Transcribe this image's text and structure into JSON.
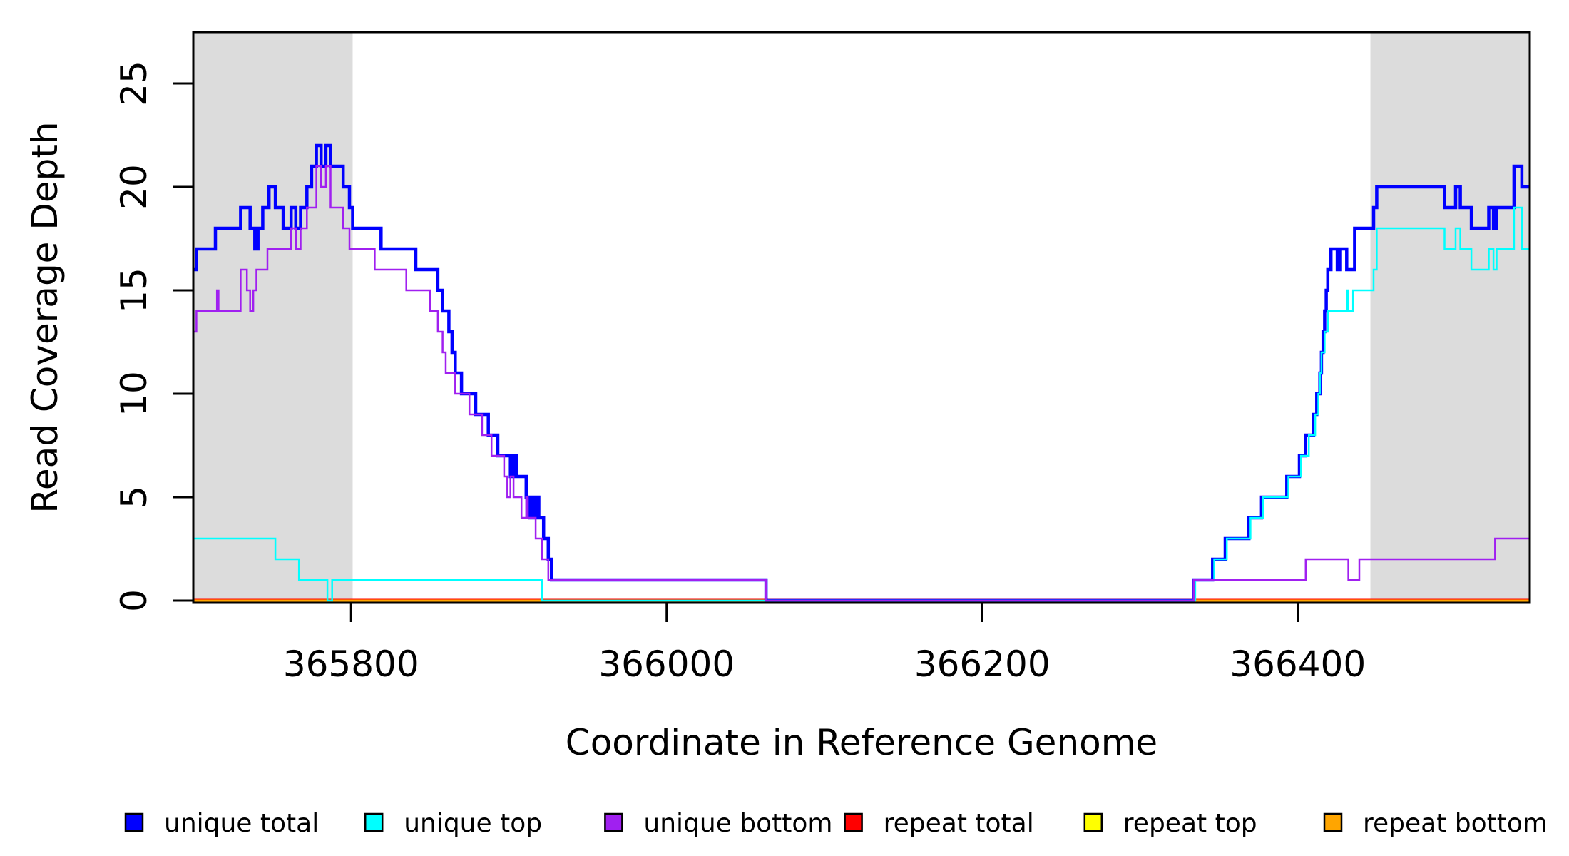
{
  "figure": {
    "background": "#ffffff",
    "plot_border_color": "#000000"
  },
  "chart_data": {
    "type": "line",
    "subtype": "step-coverage",
    "title": "",
    "xlabel": "Coordinate in Reference Genome",
    "ylabel": "Read Coverage Depth",
    "x_range": [
      365700,
      366547
    ],
    "ylim": [
      0,
      27.5
    ],
    "grid": "off",
    "legend_position": "bottom",
    "x_ticks": [
      "365800",
      "366000",
      "366200",
      "366400"
    ],
    "x_tick_values": [
      365800,
      366000,
      366200,
      366400
    ],
    "y_ticks": [
      "0",
      "5",
      "10",
      "15",
      "20",
      "25"
    ],
    "y_tick_values": [
      0,
      5,
      10,
      15,
      20,
      25
    ],
    "shade_color": "#DCDCDC",
    "shaded_regions": [
      {
        "from": 365700,
        "to": 365801
      },
      {
        "from": 366446,
        "to": 366547
      }
    ],
    "series": [
      {
        "name": "repeat total",
        "color": "#FF0000",
        "width": 5,
        "points": [
          [
            365700,
            0
          ]
        ]
      },
      {
        "name": "repeat top",
        "color": "#FFFF00",
        "width": 2.5,
        "points": [
          [
            365700,
            0
          ]
        ]
      },
      {
        "name": "repeat bottom",
        "color": "#FFA500",
        "width": 3,
        "points": [
          [
            365700,
            0
          ]
        ]
      },
      {
        "name": "unique total",
        "color": "#0000FF",
        "width": 4.5,
        "points": [
          [
            365700,
            16
          ],
          [
            365702,
            17
          ],
          [
            365714,
            18
          ],
          [
            365730,
            19
          ],
          [
            365736,
            18
          ],
          [
            365739,
            17
          ],
          [
            365741,
            18
          ],
          [
            365744,
            19
          ],
          [
            365748,
            20
          ],
          [
            365752,
            19
          ],
          [
            365757,
            18
          ],
          [
            365762,
            19
          ],
          [
            365765,
            18
          ],
          [
            365768,
            19
          ],
          [
            365772,
            20
          ],
          [
            365775,
            21
          ],
          [
            365778,
            22
          ],
          [
            365781,
            21
          ],
          [
            365784,
            22
          ],
          [
            365787,
            21
          ],
          [
            365795,
            20
          ],
          [
            365799,
            19
          ],
          [
            365801,
            18
          ],
          [
            365819,
            17
          ],
          [
            365841,
            16
          ],
          [
            365855,
            15
          ],
          [
            365858,
            14
          ],
          [
            365862,
            13
          ],
          [
            365864,
            12
          ],
          [
            365866,
            11
          ],
          [
            365870,
            10
          ],
          [
            365879,
            9
          ],
          [
            365887,
            8
          ],
          [
            365893,
            7
          ],
          [
            365901,
            6
          ],
          [
            365903,
            7
          ],
          [
            365905,
            6
          ],
          [
            365911,
            5
          ],
          [
            365913,
            4
          ],
          [
            365914,
            5
          ],
          [
            365916,
            4
          ],
          [
            365917,
            5
          ],
          [
            365919,
            4
          ],
          [
            365922,
            3
          ],
          [
            365925,
            2
          ],
          [
            365927,
            1
          ],
          [
            366063,
            0
          ],
          [
            366334,
            1
          ],
          [
            366346,
            2
          ],
          [
            366354,
            3
          ],
          [
            366369,
            4
          ],
          [
            366377,
            5
          ],
          [
            366393,
            6
          ],
          [
            366401,
            7
          ],
          [
            366405,
            8
          ],
          [
            366410,
            9
          ],
          [
            366412,
            10
          ],
          [
            366414,
            11
          ],
          [
            366415,
            12
          ],
          [
            366416,
            13
          ],
          [
            366417,
            14
          ],
          [
            366418,
            15
          ],
          [
            366419,
            16
          ],
          [
            366421,
            17
          ],
          [
            366425,
            16
          ],
          [
            366427,
            17
          ],
          [
            366431,
            16
          ],
          [
            366436,
            18
          ],
          [
            366448,
            19
          ],
          [
            366450,
            20
          ],
          [
            366493,
            19
          ],
          [
            366500,
            20
          ],
          [
            366503,
            19
          ],
          [
            366510,
            18
          ],
          [
            366521,
            19
          ],
          [
            366524,
            18
          ],
          [
            366526,
            19
          ],
          [
            366537,
            21
          ],
          [
            366542,
            20
          ]
        ]
      },
      {
        "name": "unique top",
        "color": "#00FFFF",
        "width": 2.5,
        "points": [
          [
            365700,
            3
          ],
          [
            365752,
            2
          ],
          [
            365767,
            1
          ],
          [
            365785,
            0
          ],
          [
            365788,
            1
          ],
          [
            365921,
            0
          ],
          [
            366335,
            1
          ],
          [
            366347,
            2
          ],
          [
            366355,
            3
          ],
          [
            366370,
            4
          ],
          [
            366378,
            5
          ],
          [
            366394,
            6
          ],
          [
            366402,
            7
          ],
          [
            366407,
            8
          ],
          [
            366411,
            9
          ],
          [
            366413,
            10
          ],
          [
            366414,
            11
          ],
          [
            366415,
            12
          ],
          [
            366417,
            13
          ],
          [
            366419,
            14
          ],
          [
            366431,
            15
          ],
          [
            366432,
            14
          ],
          [
            366435,
            15
          ],
          [
            366448,
            16
          ],
          [
            366450,
            18
          ],
          [
            366493,
            17
          ],
          [
            366500,
            18
          ],
          [
            366503,
            17
          ],
          [
            366510,
            16
          ],
          [
            366521,
            17
          ],
          [
            366524,
            16
          ],
          [
            366526,
            17
          ],
          [
            366537,
            19
          ],
          [
            366542,
            17
          ]
        ]
      },
      {
        "name": "unique bottom",
        "color": "#A020F0",
        "width": 2.5,
        "points": [
          [
            365700,
            13
          ],
          [
            365702,
            14
          ],
          [
            365715,
            15
          ],
          [
            365716,
            14
          ],
          [
            365730,
            16
          ],
          [
            365734,
            15
          ],
          [
            365736,
            14
          ],
          [
            365738,
            15
          ],
          [
            365740,
            16
          ],
          [
            365747,
            17
          ],
          [
            365762,
            18
          ],
          [
            365765,
            17
          ],
          [
            365768,
            18
          ],
          [
            365772,
            19
          ],
          [
            365778,
            21
          ],
          [
            365781,
            20
          ],
          [
            365784,
            21
          ],
          [
            365787,
            19
          ],
          [
            365795,
            18
          ],
          [
            365799,
            17
          ],
          [
            365815,
            16
          ],
          [
            365835,
            15
          ],
          [
            365850,
            14
          ],
          [
            365855,
            13
          ],
          [
            365858,
            12
          ],
          [
            365860,
            11
          ],
          [
            365866,
            10
          ],
          [
            365875,
            9
          ],
          [
            365883,
            8
          ],
          [
            365889,
            7
          ],
          [
            365897,
            6
          ],
          [
            365899,
            5
          ],
          [
            365901,
            6
          ],
          [
            365903,
            5
          ],
          [
            365908,
            4
          ],
          [
            365911,
            5
          ],
          [
            365912,
            4
          ],
          [
            365917,
            3
          ],
          [
            365921,
            2
          ],
          [
            365925,
            1
          ],
          [
            366063,
            0
          ],
          [
            366334,
            1
          ],
          [
            366405,
            2
          ],
          [
            366432,
            1
          ],
          [
            366439,
            2
          ],
          [
            366525,
            3
          ]
        ]
      }
    ],
    "legend": [
      {
        "label": "unique total",
        "color": "#0000FF"
      },
      {
        "label": "unique top",
        "color": "#00FFFF"
      },
      {
        "label": "unique bottom",
        "color": "#A020F0"
      },
      {
        "label": "repeat total",
        "color": "#FF0000"
      },
      {
        "label": "repeat top",
        "color": "#FFFF00"
      },
      {
        "label": "repeat bottom",
        "color": "#FFA500"
      }
    ]
  }
}
